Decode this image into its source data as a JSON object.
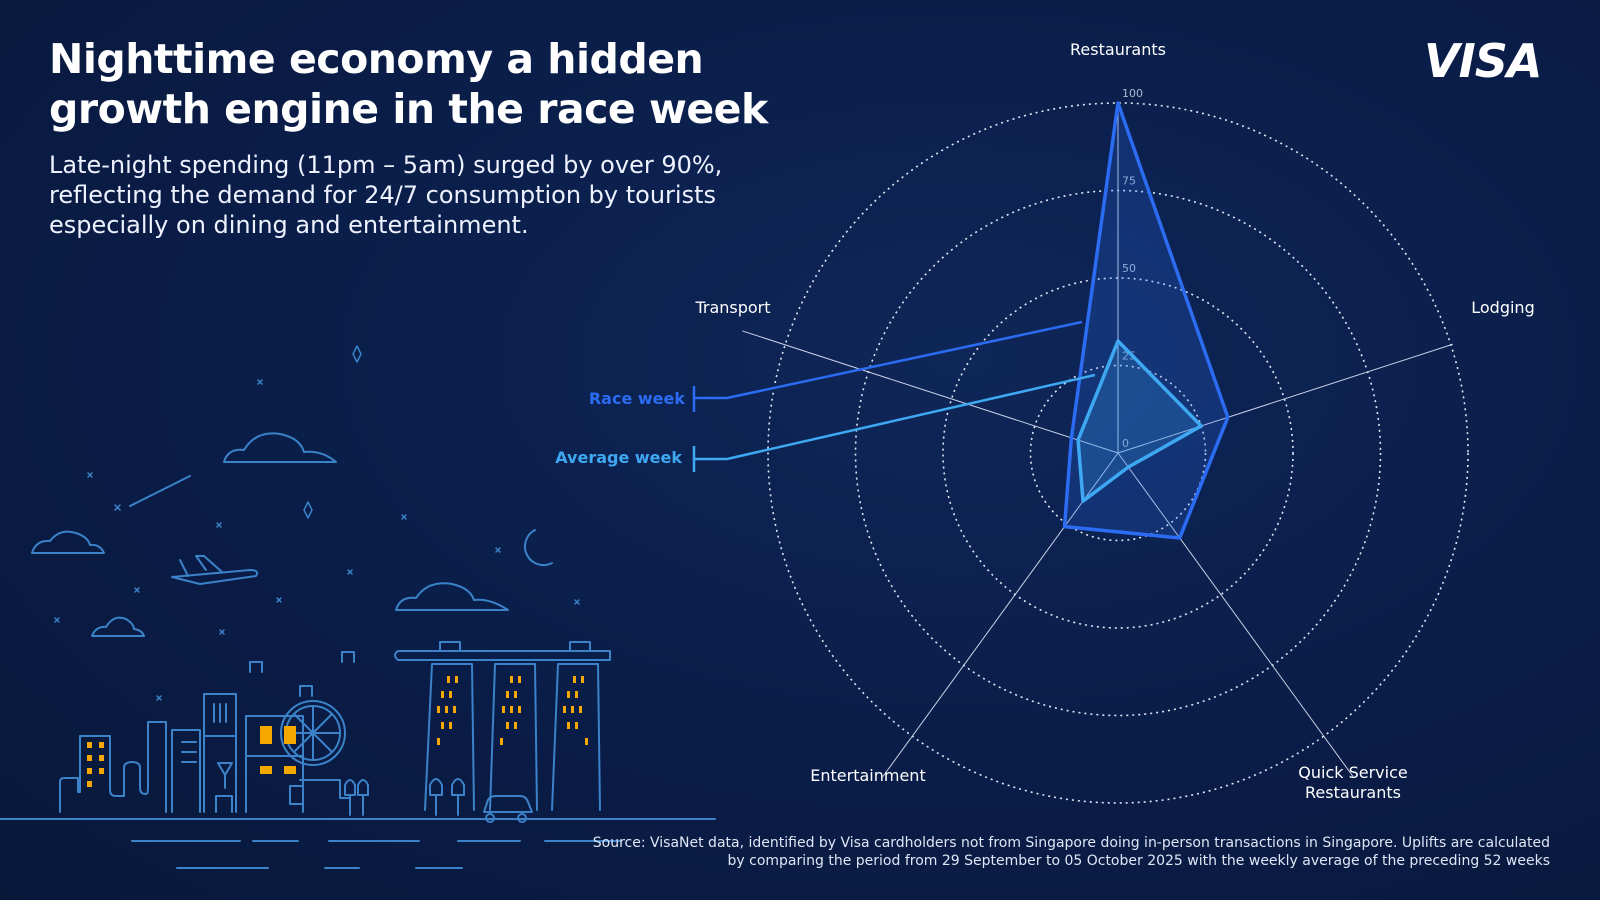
{
  "header": {
    "title_line1": "Nighttime economy a hidden",
    "title_line2": "growth engine in the race week",
    "subtitle": "Late-night spending (11pm – 5am) surged by over 90%, reflecting the demand for 24/7 consumption by tourists especially on dining and entertainment.",
    "logo": "VISA"
  },
  "source": "Source: VisaNet data, identified by Visa cardholders not from Singapore doing in-person transactions in Singapore. Uplifts are calculated by comparing the period from 29 September to 05 October 2025 with the weekly average of the preceding 52 weeks",
  "colors": {
    "background": "#0a1d48",
    "race_week": "#2b6cf2",
    "average_week": "#3ea8f2",
    "illustration": "#3b82c8",
    "windows": "#f5a800"
  },
  "chart_data": {
    "type": "radar",
    "axes": [
      "Restaurants",
      "Lodging",
      "Quick Service Restaurants",
      "Entertainment",
      "Transport"
    ],
    "axis_labels": [
      "Restaurants",
      "Lodging",
      "Quick Service\nRestaurants",
      "Entertainment",
      "Transport"
    ],
    "rlim": [
      0,
      100
    ],
    "ticks": [
      "0",
      "25",
      "50",
      "75",
      "100"
    ],
    "tick_values": [
      0,
      25,
      50,
      75,
      100
    ],
    "grid": true,
    "legend_placement": "left",
    "series": [
      {
        "name": "Race week",
        "values": [
          100,
          33,
          30,
          26,
          14
        ]
      },
      {
        "name": "Average week",
        "values": [
          32,
          25,
          5,
          17,
          12
        ]
      }
    ]
  }
}
